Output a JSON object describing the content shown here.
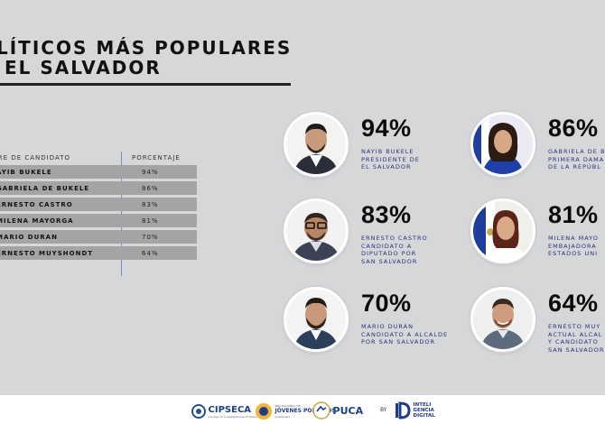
{
  "title": {
    "line1": "LÍTICOS MÁS POPULARES",
    "line2": "EL SALVADOR"
  },
  "table": {
    "headers": [
      "BRE DE CANDIDATO",
      "PORCENTAJE"
    ],
    "rows": [
      {
        "name": "AYIB BUKELE",
        "value": "94%"
      },
      {
        "name": "GABRIELA DE BUKELE",
        "value": "86%"
      },
      {
        "name": "ERNESTO CASTRO",
        "value": "83%"
      },
      {
        "name": "MILENA MAYORGA",
        "value": "81%"
      },
      {
        "name": "MARIO DURAN",
        "value": "70%"
      },
      {
        "name": "ERNESTO MUYSHONDT",
        "value": "64%"
      }
    ]
  },
  "cards": [
    {
      "pct": "94%",
      "lines": [
        "NAYIB BUKELE",
        "PRESIDENTE DE",
        "EL SALVADOR"
      ]
    },
    {
      "pct": "86%",
      "lines": [
        "GABRIELA DE B",
        "PRIMERA DAMA",
        "DE LA REPÚBL"
      ]
    },
    {
      "pct": "83%",
      "lines": [
        "ERNESTO CASTRO",
        "CANDIDATO A",
        "DIPUTADO POR",
        "SAN SALVADOR"
      ]
    },
    {
      "pct": "81%",
      "lines": [
        "MILENA MAYO",
        "EMBAJADORA",
        "ESTADOS UNI"
      ]
    },
    {
      "pct": "70%",
      "lines": [
        "MARIO DURÁN",
        "CANDIDATO A ALCALDE",
        "POR SAN SALVADOR"
      ]
    },
    {
      "pct": "64%",
      "lines": [
        "ERNESTO MUY",
        "ACTUAL ALCAL",
        "Y CANDIDATO",
        "SAN SALVADOR"
      ]
    }
  ],
  "footer": {
    "logos": [
      "CIPSECA",
      "JÓVENES POLÍTICOS",
      "PUCA",
      "BY",
      "INTELIGENCIA DIGITAL"
    ],
    "cipseca_sub": "Consejo de Investigaciones Políticas",
    "jovenes_top": "RED NACIONAL DE",
    "jovenes_bottom": "Guatemala",
    "inteli_top": "INTELI",
    "inteli_mid": "GENCIA",
    "inteli_bot": "DIGITAL"
  },
  "colors": {
    "background": "#d6d7d9",
    "row": "#a4a4a6",
    "accent_blue": "#28307d",
    "divider": "#7a8cc2"
  }
}
